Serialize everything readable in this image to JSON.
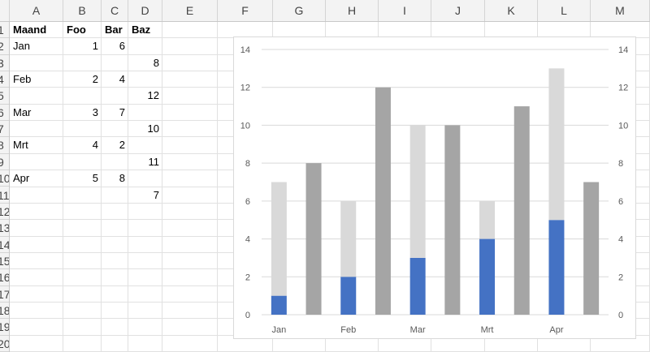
{
  "columns": [
    "A",
    "B",
    "C",
    "D",
    "E",
    "F",
    "G",
    "H",
    "I",
    "J",
    "K",
    "L",
    "M"
  ],
  "rows": [
    "1",
    "2",
    "3",
    "4",
    "5",
    "6",
    "7",
    "8",
    "9",
    "10",
    "11",
    "12",
    "13",
    "14",
    "15",
    "16",
    "17",
    "18",
    "19",
    "20"
  ],
  "cells": {
    "A1": "Maand",
    "B1": "Foo",
    "C1": "Bar",
    "D1": "Baz",
    "A2": "Jan",
    "B2": "1",
    "C2": "6",
    "D3": "8",
    "A4": "Feb",
    "B4": "2",
    "C4": "4",
    "D5": "12",
    "A6": "Mar",
    "B6": "3",
    "C6": "7",
    "D7": "10",
    "A8": "Mrt",
    "B8": "4",
    "C8": "2",
    "D9": "11",
    "A10": "Apr",
    "B10": "5",
    "C10": "8",
    "D11": "7"
  },
  "colors": {
    "foo": "#4472c4",
    "bar": "#d9d9d9",
    "baz": "#a5a5a5",
    "gridline": "#d9d9d9"
  },
  "chart_data": {
    "type": "bar",
    "stacked": true,
    "categories": [
      "Jan",
      "",
      "Feb",
      "",
      "Mar",
      "",
      "Mrt",
      "",
      "Apr",
      ""
    ],
    "x_tick_labels": [
      "Jan",
      "Feb",
      "Mar",
      "Mrt",
      "Apr"
    ],
    "series": [
      {
        "name": "Foo",
        "values": [
          1,
          0,
          2,
          0,
          3,
          0,
          4,
          0,
          5,
          0
        ]
      },
      {
        "name": "Bar",
        "values": [
          6,
          0,
          4,
          0,
          7,
          0,
          2,
          0,
          8,
          0
        ]
      },
      {
        "name": "Baz",
        "values": [
          0,
          8,
          0,
          12,
          0,
          10,
          0,
          11,
          0,
          7
        ]
      }
    ],
    "ylim": [
      0,
      14
    ],
    "y_ticks": [
      0,
      2,
      4,
      6,
      8,
      10,
      12,
      14
    ],
    "secondary_y_ticks": [
      0,
      2,
      4,
      6,
      8,
      10,
      12,
      14
    ],
    "grid": true,
    "title": "",
    "xlabel": "",
    "ylabel": ""
  }
}
